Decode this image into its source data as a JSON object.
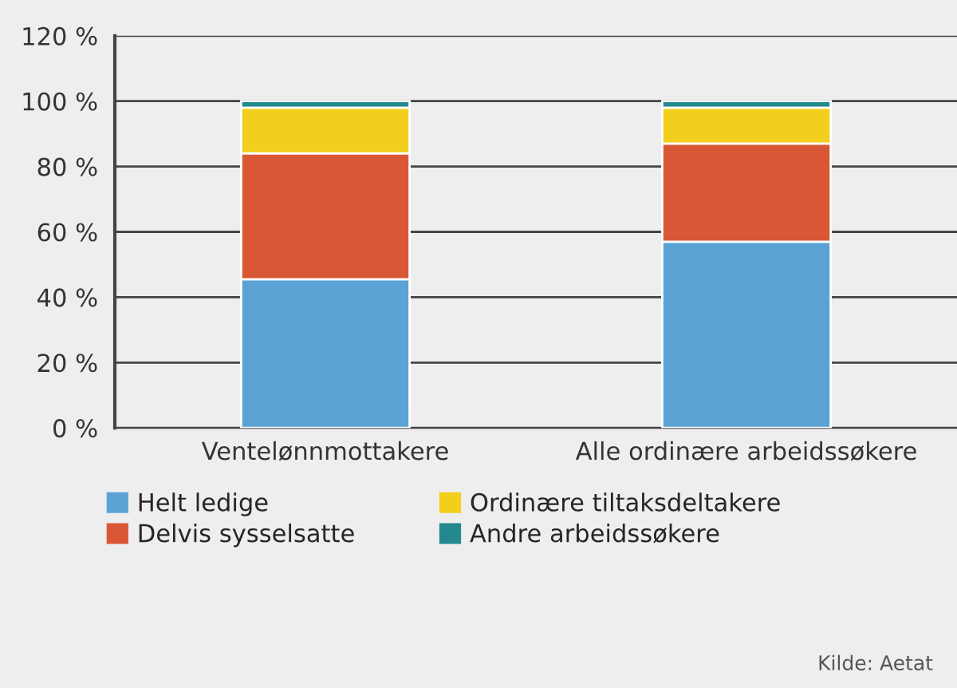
{
  "chart_data": {
    "type": "bar",
    "stacked": true,
    "categories": [
      "Ventelønnmottakere",
      "Alle ordinære arbeidssøkere"
    ],
    "series": [
      {
        "name": "Helt ledige",
        "color": "#5ba3d4",
        "values": [
          45.5,
          57
        ]
      },
      {
        "name": "Delvis sysselsatte",
        "color": "#d95735",
        "values": [
          38.5,
          30
        ]
      },
      {
        "name": "Ordinære tiltaksdeltakere",
        "color": "#f2cf1d",
        "values": [
          14,
          11
        ]
      },
      {
        "name": "Andre arbeidssøkere",
        "color": "#23898e",
        "values": [
          2,
          2
        ]
      }
    ],
    "ylim": [
      0,
      120
    ],
    "yticks": [
      {
        "value": 0,
        "label": "0 %"
      },
      {
        "value": 20,
        "label": "20 %"
      },
      {
        "value": 40,
        "label": "40 %"
      },
      {
        "value": 60,
        "label": "60 %"
      },
      {
        "value": 80,
        "label": "80 %"
      },
      {
        "value": 100,
        "label": "100 %"
      },
      {
        "value": 120,
        "label": "120 %"
      }
    ],
    "grid": "y",
    "legend": "bottom",
    "annotations": [
      "Kilde: Aetat"
    ]
  }
}
